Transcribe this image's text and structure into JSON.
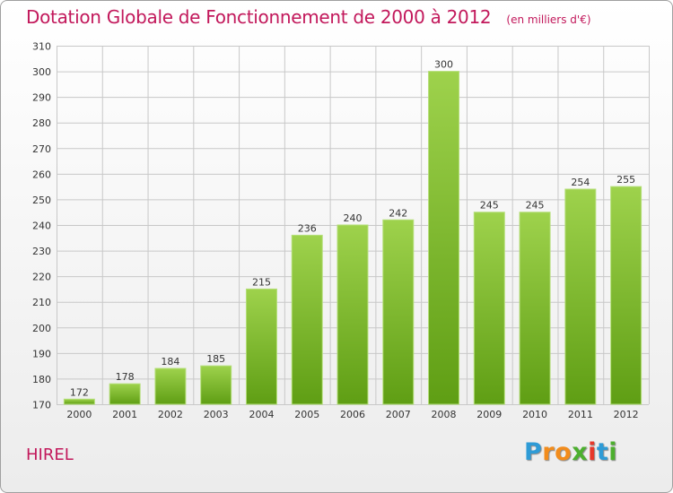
{
  "title": "Dotation Globale de Fonctionnement de 2000 à 2012",
  "subtitle": "(en milliers d'€)",
  "commune": "HIREL",
  "brand": {
    "letters": [
      "P",
      "r",
      "o",
      "x",
      "i",
      "t",
      "i"
    ],
    "colors": [
      "#2e9bd6",
      "#f28c1c",
      "#f28c1c",
      "#4caf2e",
      "#e6392b",
      "#2e9bd6",
      "#4caf2e"
    ]
  },
  "colors": {
    "title": "#c2185b",
    "bar_top": "#9ed24c",
    "bar_bottom": "#5f9e14",
    "grid": "#c8c8c8"
  },
  "chart_data": {
    "type": "bar",
    "categories": [
      "2000",
      "2001",
      "2002",
      "2003",
      "2004",
      "2005",
      "2006",
      "2007",
      "2008",
      "2009",
      "2010",
      "2011",
      "2012"
    ],
    "values": [
      172,
      178,
      184,
      185,
      215,
      236,
      240,
      242,
      300,
      245,
      245,
      254,
      255
    ],
    "ylim": [
      170,
      310
    ],
    "yticks": [
      170,
      180,
      190,
      200,
      210,
      220,
      230,
      240,
      250,
      260,
      270,
      280,
      290,
      300,
      310
    ],
    "grid": true,
    "data_labels": true
  }
}
